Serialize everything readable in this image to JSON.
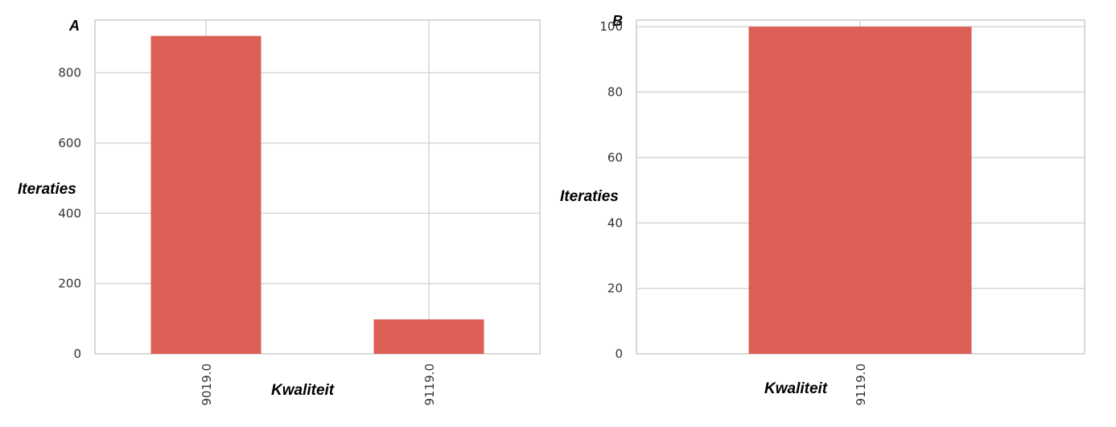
{
  "chart_data": [
    {
      "panel_label": "A",
      "type": "bar",
      "categories": [
        "9019.0",
        "9119.0"
      ],
      "values": [
        905,
        98
      ],
      "xlabel": "Kwaliteit",
      "ylabel": "Iteraties",
      "ylim": [
        0,
        950
      ],
      "yticks": [
        "0",
        "200",
        "400",
        "600",
        "800"
      ],
      "grid": true,
      "bar_color": "#dc5f56"
    },
    {
      "panel_label": "B",
      "type": "bar",
      "categories": [
        "9119.0"
      ],
      "values": [
        100
      ],
      "xlabel": "Kwaliteit",
      "ylabel": "Iteraties",
      "ylim": [
        0,
        102
      ],
      "yticks": [
        "0",
        "20",
        "40",
        "60",
        "80",
        "100"
      ],
      "grid": true,
      "bar_color": "#dc5f56"
    }
  ]
}
